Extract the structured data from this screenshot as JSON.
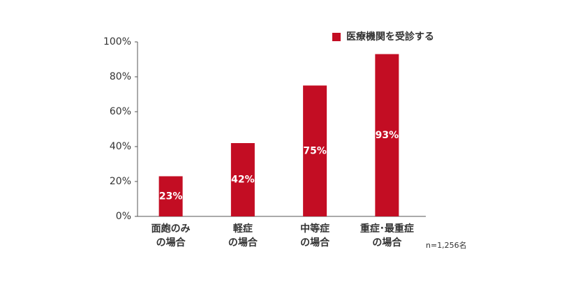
{
  "chart_data": {
    "type": "bar",
    "categories": [
      "面皰のみ\nの場合",
      "軽症\nの場合",
      "中等症\nの場合",
      "重症･最重症\nの場合"
    ],
    "series": [
      {
        "name": "医療機関を受診する",
        "color": "#c30d23",
        "values": [
          23,
          42,
          75,
          93
        ],
        "value_labels": [
          "23%",
          "42%",
          "75%",
          "93%"
        ]
      }
    ],
    "ylim": [
      0,
      100
    ],
    "yticks": [
      {
        "value": 0,
        "label": "0%"
      },
      {
        "value": 20,
        "label": "20%"
      },
      {
        "value": 40,
        "label": "40%"
      },
      {
        "value": 60,
        "label": "60%"
      },
      {
        "value": 80,
        "label": "80%"
      },
      {
        "value": 100,
        "label": "100%"
      }
    ],
    "grid": false,
    "legend": "top-right",
    "note": "n=1,256名"
  }
}
